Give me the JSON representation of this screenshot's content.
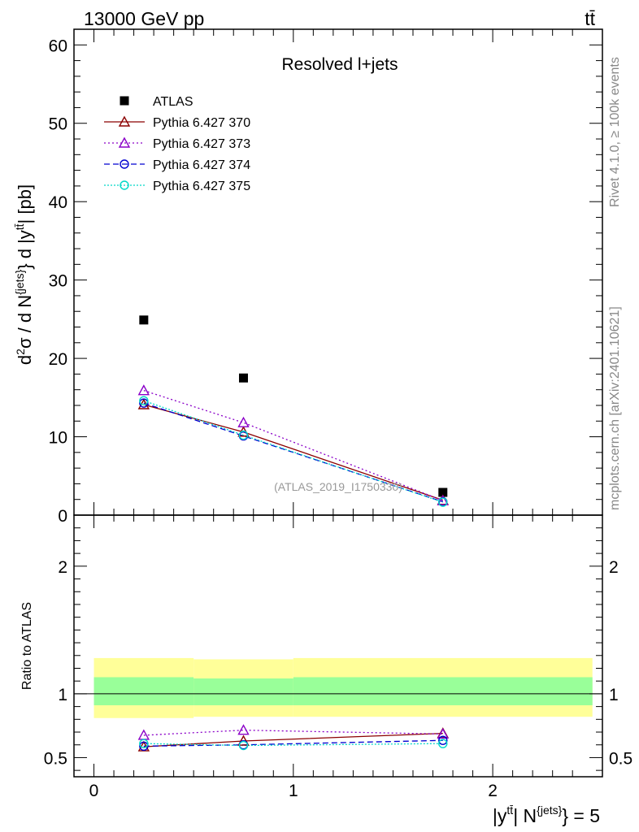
{
  "header": {
    "left": "13000 GeV pp",
    "right": "tt̄"
  },
  "side_labels": {
    "rivet": "Rivet 4.1.0, ≥ 100k events",
    "mcplots": "mcplots.cern.ch [arXiv:2401.10621]"
  },
  "watermark": "(ATLAS_2019_I1750330)",
  "colors": {
    "atlas": "#000000",
    "p370": "#8b0000",
    "p373": "#8a00c8",
    "p374": "#0000d0",
    "p375": "#00d8c8",
    "band_yellow": "#ffff99",
    "band_green": "#99ff99"
  },
  "chart_data": [
    {
      "type": "scatter",
      "title": "Resolved l+jets",
      "ylabel": "d²σ / d N^{jets} d |y^{tt̄}| [pb]",
      "xlim": [
        -0.1,
        2.55
      ],
      "ylim": [
        0,
        62
      ],
      "yticks": [
        0,
        10,
        20,
        30,
        40,
        50,
        60
      ],
      "x": [
        0.25,
        0.75,
        1.75
      ],
      "series": [
        {
          "name": "ATLAS",
          "marker": "square",
          "values": [
            24.9,
            17.5,
            2.9
          ]
        },
        {
          "name": "Pythia 6.427 370",
          "marker": "triangle",
          "line": "solid",
          "values": [
            14.1,
            10.6,
            1.9
          ]
        },
        {
          "name": "Pythia 6.427 373",
          "marker": "triangle",
          "line": "dotted",
          "values": [
            15.9,
            11.8,
            1.85
          ]
        },
        {
          "name": "Pythia 6.427 374",
          "marker": "circle",
          "line": "dashed",
          "values": [
            14.3,
            10.1,
            1.7
          ]
        },
        {
          "name": "Pythia 6.427 375",
          "marker": "circle",
          "line": "dotted",
          "values": [
            14.6,
            10.2,
            1.65
          ]
        }
      ]
    },
    {
      "type": "line",
      "ylabel": "Ratio to ATLAS",
      "xlabel": "|y^{tt̄}| N^{jets} = 5",
      "xlim": [
        -0.1,
        2.55
      ],
      "ylim": [
        0.35,
        2.4
      ],
      "yticks_labeled": [
        0.5,
        1,
        2
      ],
      "yticks_labels": [
        "0.5",
        "1",
        "2"
      ],
      "xticks": [
        0,
        1,
        2
      ],
      "xticks_labels": [
        "0",
        "1",
        "2"
      ],
      "x": [
        0.25,
        0.75,
        1.75
      ],
      "bands": [
        {
          "name": "yellow",
          "edges": [
            0,
            0.5,
            1.0,
            2.5
          ],
          "lo": [
            0.81,
            0.82,
            0.82
          ],
          "hi": [
            1.28,
            1.27,
            1.28
          ]
        },
        {
          "name": "green",
          "edges": [
            0,
            0.5,
            1.0,
            2.5
          ],
          "lo": [
            0.91,
            0.91,
            0.91
          ],
          "hi": [
            1.13,
            1.12,
            1.13
          ]
        }
      ],
      "series": [
        {
          "name": "Pythia 6.427 370",
          "values": [
            0.585,
            0.63,
            0.69
          ]
        },
        {
          "name": "Pythia 6.427 373",
          "values": [
            0.675,
            0.715,
            0.685
          ]
        },
        {
          "name": "Pythia 6.427 374",
          "values": [
            0.59,
            0.6,
            0.635
          ]
        },
        {
          "name": "Pythia 6.427 375",
          "values": [
            0.61,
            0.595,
            0.61
          ]
        }
      ]
    }
  ]
}
